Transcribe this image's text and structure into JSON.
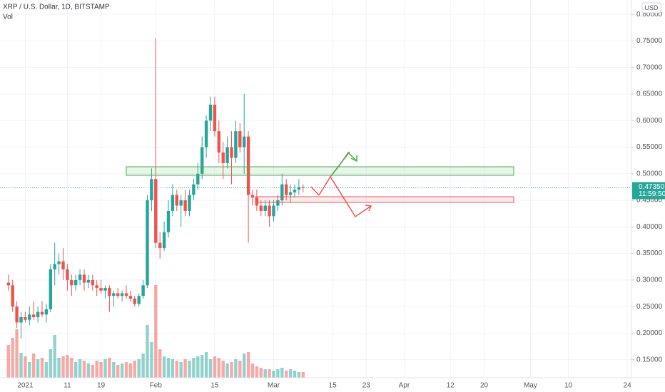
{
  "header": {
    "symbol": "XRP / U.S. Dollar, 1D, BITSTAMP",
    "volume_label": "Vol",
    "currency": "USD"
  },
  "chart_data": {
    "type": "candlestick",
    "x": [
      "2020-12-28",
      "2020-12-29",
      "2020-12-30",
      "2020-12-31",
      "2021-01-01",
      "2021-01-02",
      "2021-01-03",
      "2021-01-04",
      "2021-01-05",
      "2021-01-06",
      "2021-01-07",
      "2021-01-08",
      "2021-01-09",
      "2021-01-10",
      "2021-01-11",
      "2021-01-12",
      "2021-01-13",
      "2021-01-14",
      "2021-01-15",
      "2021-01-16",
      "2021-01-17",
      "2021-01-18",
      "2021-01-19",
      "2021-01-20",
      "2021-01-21",
      "2021-01-22",
      "2021-01-23",
      "2021-01-24",
      "2021-01-25",
      "2021-01-26",
      "2021-01-27",
      "2021-01-28",
      "2021-01-29",
      "2021-01-30",
      "2021-01-31",
      "2021-02-01",
      "2021-02-02",
      "2021-02-03",
      "2021-02-04",
      "2021-02-05",
      "2021-02-06",
      "2021-02-07",
      "2021-02-08",
      "2021-02-09",
      "2021-02-10",
      "2021-02-11",
      "2021-02-12",
      "2021-02-13",
      "2021-02-14",
      "2021-02-15",
      "2021-02-16",
      "2021-02-17",
      "2021-02-18",
      "2021-02-19",
      "2021-02-20",
      "2021-02-21",
      "2021-02-22",
      "2021-02-23",
      "2021-02-24",
      "2021-02-25",
      "2021-02-26",
      "2021-02-27",
      "2021-02-28",
      "2021-03-01",
      "2021-03-02",
      "2021-03-03",
      "2021-03-04",
      "2021-03-05",
      "2021-03-06",
      "2021-03-07",
      "2021-03-08"
    ],
    "open": [
      0.295,
      0.29,
      0.25,
      0.22,
      0.23,
      0.225,
      0.235,
      0.23,
      0.24,
      0.235,
      0.245,
      0.32,
      0.33,
      0.335,
      0.32,
      0.3,
      0.29,
      0.3,
      0.31,
      0.295,
      0.3,
      0.29,
      0.285,
      0.28,
      0.285,
      0.27,
      0.275,
      0.27,
      0.275,
      0.27,
      0.265,
      0.255,
      0.27,
      0.29,
      0.45,
      0.49,
      0.37,
      0.36,
      0.39,
      0.43,
      0.46,
      0.44,
      0.45,
      0.43,
      0.46,
      0.48,
      0.5,
      0.55,
      0.6,
      0.63,
      0.58,
      0.54,
      0.52,
      0.55,
      0.53,
      0.58,
      0.55,
      0.57,
      0.46,
      0.455,
      0.44,
      0.43,
      0.44,
      0.42,
      0.44,
      0.45,
      0.48,
      0.46,
      0.465,
      0.47,
      0.475
    ],
    "high": [
      0.31,
      0.3,
      0.26,
      0.24,
      0.24,
      0.25,
      0.26,
      0.25,
      0.26,
      0.255,
      0.33,
      0.37,
      0.35,
      0.36,
      0.33,
      0.31,
      0.31,
      0.32,
      0.32,
      0.31,
      0.31,
      0.3,
      0.3,
      0.29,
      0.29,
      0.28,
      0.285,
      0.28,
      0.29,
      0.28,
      0.27,
      0.275,
      0.3,
      0.46,
      0.51,
      0.755,
      0.39,
      0.41,
      0.45,
      0.48,
      0.47,
      0.46,
      0.47,
      0.47,
      0.49,
      0.52,
      0.57,
      0.61,
      0.645,
      0.645,
      0.6,
      0.56,
      0.57,
      0.58,
      0.6,
      0.595,
      0.65,
      0.58,
      0.47,
      0.47,
      0.45,
      0.45,
      0.45,
      0.45,
      0.46,
      0.5,
      0.49,
      0.48,
      0.48,
      0.49,
      0.48
    ],
    "low": [
      0.28,
      0.24,
      0.21,
      0.19,
      0.22,
      0.215,
      0.225,
      0.22,
      0.23,
      0.22,
      0.24,
      0.29,
      0.31,
      0.3,
      0.28,
      0.27,
      0.28,
      0.29,
      0.28,
      0.285,
      0.28,
      0.27,
      0.275,
      0.265,
      0.24,
      0.25,
      0.265,
      0.26,
      0.265,
      0.26,
      0.25,
      0.25,
      0.265,
      0.285,
      0.43,
      0.36,
      0.34,
      0.355,
      0.38,
      0.42,
      0.43,
      0.4,
      0.42,
      0.42,
      0.45,
      0.47,
      0.49,
      0.53,
      0.58,
      0.57,
      0.52,
      0.49,
      0.51,
      0.48,
      0.52,
      0.54,
      0.5,
      0.37,
      0.44,
      0.43,
      0.42,
      0.42,
      0.4,
      0.41,
      0.43,
      0.44,
      0.45,
      0.445,
      0.455,
      0.46,
      0.465
    ],
    "close": [
      0.29,
      0.25,
      0.22,
      0.23,
      0.225,
      0.235,
      0.23,
      0.24,
      0.235,
      0.245,
      0.32,
      0.33,
      0.335,
      0.32,
      0.3,
      0.29,
      0.3,
      0.31,
      0.295,
      0.3,
      0.29,
      0.285,
      0.28,
      0.285,
      0.27,
      0.275,
      0.27,
      0.275,
      0.27,
      0.265,
      0.255,
      0.27,
      0.29,
      0.45,
      0.49,
      0.37,
      0.36,
      0.39,
      0.43,
      0.46,
      0.44,
      0.45,
      0.43,
      0.46,
      0.48,
      0.5,
      0.55,
      0.6,
      0.63,
      0.58,
      0.54,
      0.52,
      0.55,
      0.53,
      0.58,
      0.55,
      0.57,
      0.46,
      0.455,
      0.44,
      0.43,
      0.44,
      0.42,
      0.44,
      0.45,
      0.48,
      0.46,
      0.465,
      0.47,
      0.475,
      0.4735
    ],
    "volume": [
      46,
      56,
      68,
      35,
      30,
      22,
      34,
      26,
      28,
      22,
      40,
      60,
      28,
      30,
      32,
      28,
      22,
      26,
      24,
      20,
      18,
      24,
      22,
      26,
      28,
      22,
      18,
      20,
      22,
      20,
      24,
      26,
      34,
      74,
      50,
      130,
      40,
      30,
      28,
      26,
      24,
      22,
      26,
      24,
      28,
      30,
      32,
      36,
      26,
      30,
      28,
      24,
      20,
      22,
      26,
      24,
      34,
      36,
      20,
      16,
      14,
      12,
      12,
      10,
      12,
      14,
      10,
      12,
      10,
      8,
      8
    ],
    "up_color": "#26a69a",
    "down_color": "#ef5350",
    "ylim": [
      0.116,
      0.827
    ],
    "yticks": [
      {
        "value": 0.15,
        "label": "0.15000"
      },
      {
        "value": 0.2,
        "label": "0.20000"
      },
      {
        "value": 0.25,
        "label": "0.25000"
      },
      {
        "value": 0.3,
        "label": "0.30000"
      },
      {
        "value": 0.35,
        "label": "0.35000"
      },
      {
        "value": 0.4,
        "label": "0.40000"
      },
      {
        "value": 0.45,
        "label": "0.45000"
      },
      {
        "value": 0.5,
        "label": "0.50000"
      },
      {
        "value": 0.55,
        "label": "0.55000"
      },
      {
        "value": 0.6,
        "label": "0.60000"
      },
      {
        "value": 0.65,
        "label": "0.65000"
      },
      {
        "value": 0.7,
        "label": "0.70000"
      },
      {
        "value": 0.75,
        "label": "0.75000"
      },
      {
        "value": 0.8,
        "label": "0.80000"
      }
    ],
    "xlim": [
      "2020-12-26",
      "2021-05-25"
    ],
    "xticks": [
      {
        "value": "2021-01-01",
        "label": "2021"
      },
      {
        "value": "2021-01-11",
        "label": "11"
      },
      {
        "value": "2021-01-19",
        "label": "19"
      },
      {
        "value": "2021-02-01",
        "label": "Feb"
      },
      {
        "value": "2021-02-15",
        "label": "15"
      },
      {
        "value": "2021-03-01",
        "label": "Mar"
      },
      {
        "value": "2021-03-15",
        "label": "15"
      },
      {
        "value": "2021-03-23",
        "label": "23"
      },
      {
        "value": "2021-04-01",
        "label": "Apr"
      },
      {
        "value": "2021-04-12",
        "label": "12"
      },
      {
        "value": "2021-04-20",
        "label": "20"
      },
      {
        "value": "2021-05-01",
        "label": "May"
      },
      {
        "value": "2021-05-10",
        "label": "10"
      },
      {
        "value": "2021-05-24",
        "label": "24"
      }
    ],
    "last_price": {
      "value": 0.4735,
      "label": "0.47350"
    },
    "countdown": "11:59:50",
    "grid": true
  }
}
